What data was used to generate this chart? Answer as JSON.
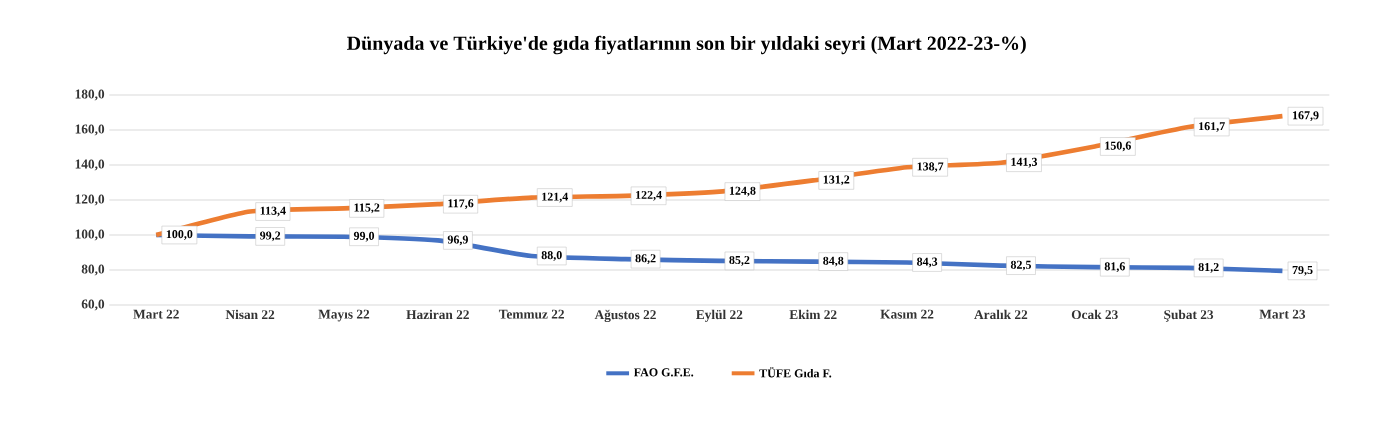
{
  "chart_data": {
    "type": "line",
    "title": "Dünyada ve Türkiye'de gıda fiyatlarının son bir yıldaki seyri (Mart 2022-23-%)",
    "categories": [
      "Mart 22",
      "Nisan 22",
      "Mayıs 22",
      "Haziran 22",
      "Temmuz 22",
      "Ağustos 22",
      "Eylül 22",
      "Ekim 22",
      "Kasım 22",
      "Aralık 22",
      "Ocak 23",
      "Şubat 23",
      "Mart 23"
    ],
    "series": [
      {
        "name": "FAO G.F.E.",
        "color": "#4472c4",
        "values": [
          100.0,
          99.2,
          99.0,
          96.9,
          88.0,
          86.2,
          85.2,
          84.8,
          84.3,
          82.5,
          81.6,
          81.2,
          79.5
        ],
        "value_labels": [
          "100,0",
          "99,2",
          "99,0",
          "96,9",
          "88,0",
          "86,2",
          "85,2",
          "84,8",
          "84,3",
          "82,5",
          "81,6",
          "81,2",
          "79,5"
        ]
      },
      {
        "name": "TÜFE Gıda F.",
        "color": "#ed7d31",
        "values": [
          100.0,
          113.4,
          115.2,
          117.6,
          121.4,
          122.4,
          124.8,
          131.2,
          138.7,
          141.3,
          150.6,
          161.7,
          167.9
        ],
        "value_labels": [
          null,
          "113,4",
          "115,2",
          "117,6",
          "121,4",
          "122,4",
          "124,8",
          "131,2",
          "138,7",
          "141,3",
          "150,6",
          "161,7",
          "167,9"
        ]
      }
    ],
    "ylim": [
      60,
      180
    ],
    "yticks": [
      {
        "value": 60,
        "label": "60,0"
      },
      {
        "value": 80,
        "label": "80,0"
      },
      {
        "value": 100,
        "label": "100,0"
      },
      {
        "value": 120,
        "label": "120,0"
      },
      {
        "value": 140,
        "label": "140,0"
      },
      {
        "value": 160,
        "label": "160,0"
      },
      {
        "value": 180,
        "label": "180,0"
      }
    ],
    "grid": "y",
    "legend": "bottom"
  }
}
